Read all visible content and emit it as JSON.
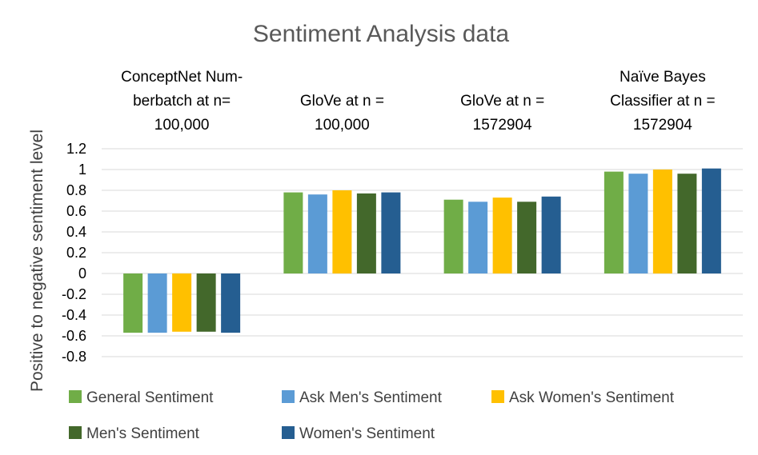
{
  "chart_data": {
    "type": "bar",
    "title": "Sentiment Analysis data",
    "ylabel": "Positive to negative sentiment level",
    "xlabel": "",
    "ylim": [
      -0.8,
      1.2
    ],
    "yticks": [
      "1.2",
      "1",
      "0.8",
      "0.6",
      "0.4",
      "0.2",
      "0",
      "-0.2",
      "-0.4",
      "-0.6",
      "-0.8"
    ],
    "grid": true,
    "legend_position": "bottom",
    "categories": [
      [
        "ConceptNet Num-",
        "berbatch at n=",
        "100,000"
      ],
      [
        "GloVe at n =",
        "100,000"
      ],
      [
        "GloVe at n =",
        "1572904"
      ],
      [
        "Naïve Bayes",
        "Classifier at n =",
        "1572904"
      ]
    ],
    "series": [
      {
        "name": "General Sentiment",
        "color": "#70ad47",
        "values": [
          -0.57,
          0.78,
          0.71,
          0.98
        ]
      },
      {
        "name": "Ask Men's Sentiment",
        "color": "#5b9bd5",
        "values": [
          -0.57,
          0.76,
          0.69,
          0.96
        ]
      },
      {
        "name": "Ask Women's Sentiment",
        "color": "#ffc000",
        "values": [
          -0.56,
          0.8,
          0.73,
          1.0
        ]
      },
      {
        "name": "Men's Sentiment",
        "color": "#43682b",
        "values": [
          -0.56,
          0.77,
          0.69,
          0.96
        ]
      },
      {
        "name": "Women's Sentiment",
        "color": "#255e91",
        "values": [
          -0.57,
          0.78,
          0.74,
          1.01
        ]
      }
    ]
  }
}
